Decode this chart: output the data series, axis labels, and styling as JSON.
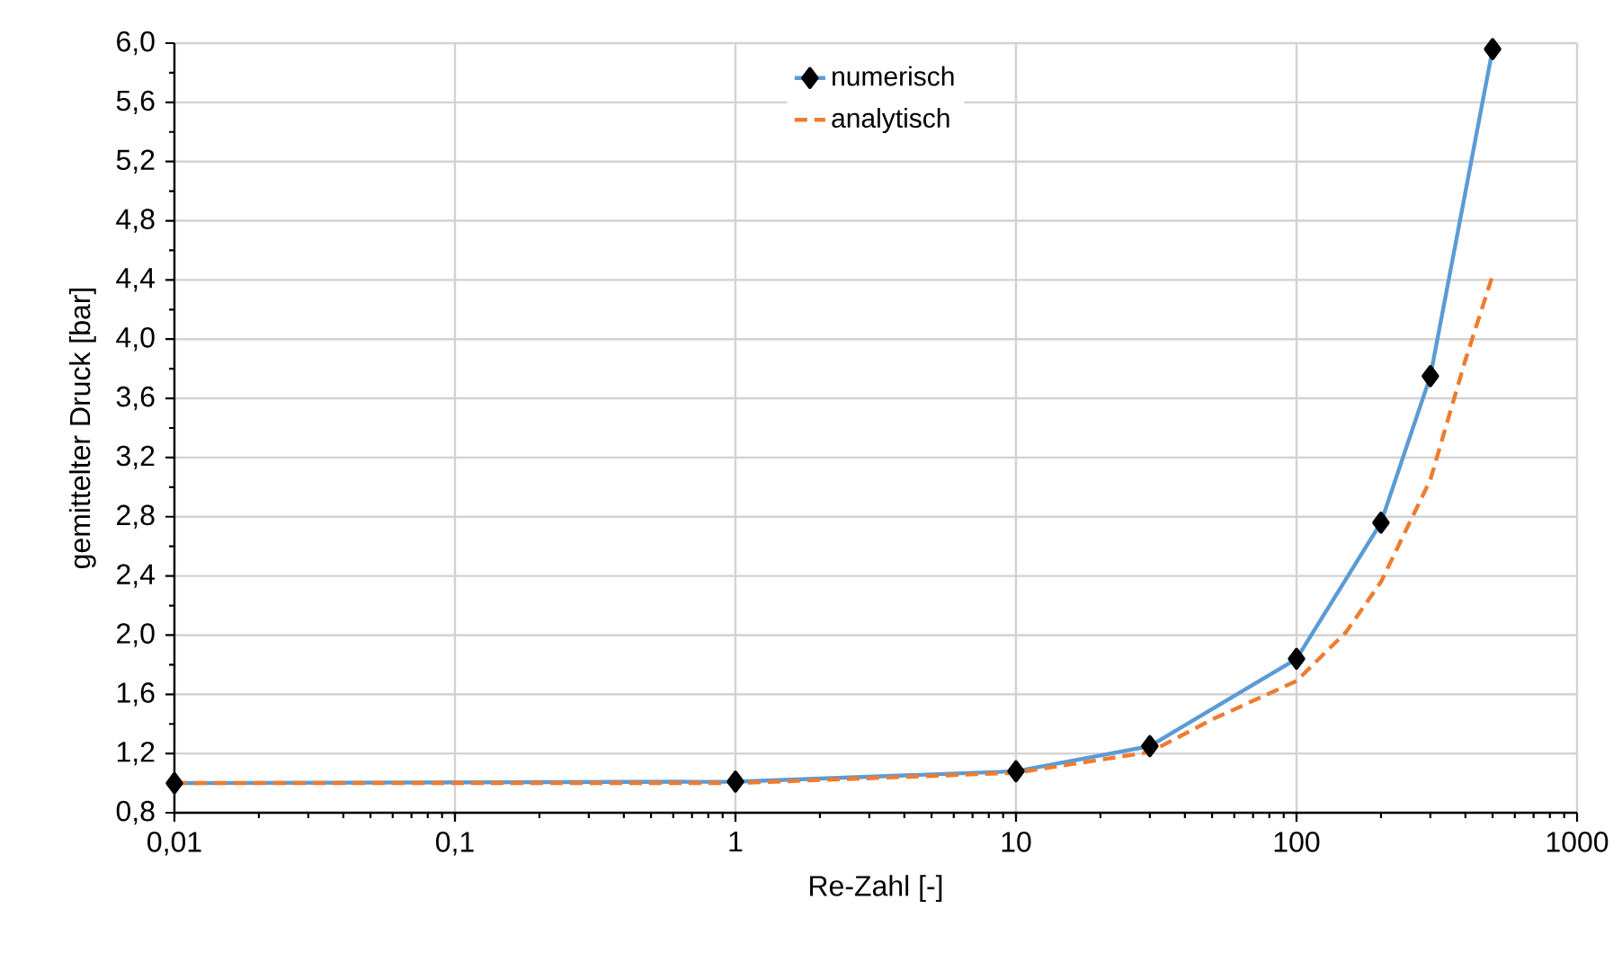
{
  "chart_data": {
    "type": "line",
    "xlabel": "Re-Zahl [-]",
    "ylabel": "gemittelter Druck [bar]",
    "log": "x",
    "xlim": [
      0.01,
      1000
    ],
    "xticks": [
      {
        "value": 0.01,
        "label": "0,01"
      },
      {
        "value": 0.1,
        "label": "0,1"
      },
      1,
      10,
      100,
      1000
    ],
    "ylim": [
      0.8,
      6.0
    ],
    "yticks": [
      {
        "value": 0.8,
        "label": "0,8"
      },
      {
        "value": 1.2,
        "label": "1,2"
      },
      {
        "value": 1.6,
        "label": "1,6"
      },
      {
        "value": 2.0,
        "label": "2,0"
      },
      {
        "value": 2.4,
        "label": "2,4"
      },
      {
        "value": 2.8,
        "label": "2,8"
      },
      {
        "value": 3.2,
        "label": "3,2"
      },
      {
        "value": 3.6,
        "label": "3,6"
      },
      {
        "value": 4.0,
        "label": "4,0"
      },
      {
        "value": 4.4,
        "label": "4,4"
      },
      {
        "value": 4.8,
        "label": "4,8"
      },
      {
        "value": 5.2,
        "label": "5,2"
      },
      {
        "value": 5.6,
        "label": "5,6"
      },
      {
        "value": 6.0,
        "label": "6,0"
      }
    ],
    "grid": true,
    "legend": "top",
    "series": [
      {
        "name": "numerisch",
        "color": "#5b9bd5",
        "marker": "diamond",
        "line_style": "solid",
        "x": [
          0.01,
          1,
          10,
          30,
          100,
          200,
          300,
          500
        ],
        "values": [
          1.0,
          1.01,
          1.08,
          1.25,
          1.84,
          2.76,
          3.75,
          5.96
        ]
      },
      {
        "name": "analytisch",
        "color": "#ed7d31",
        "marker": "none",
        "line_style": "dashed",
        "x": [
          0.01,
          1,
          10,
          30,
          50,
          100,
          150,
          200,
          300,
          400,
          500
        ],
        "values": [
          1.0,
          1.0,
          1.07,
          1.21,
          1.43,
          1.69,
          2.02,
          2.36,
          3.05,
          3.86,
          4.43
        ]
      }
    ]
  }
}
